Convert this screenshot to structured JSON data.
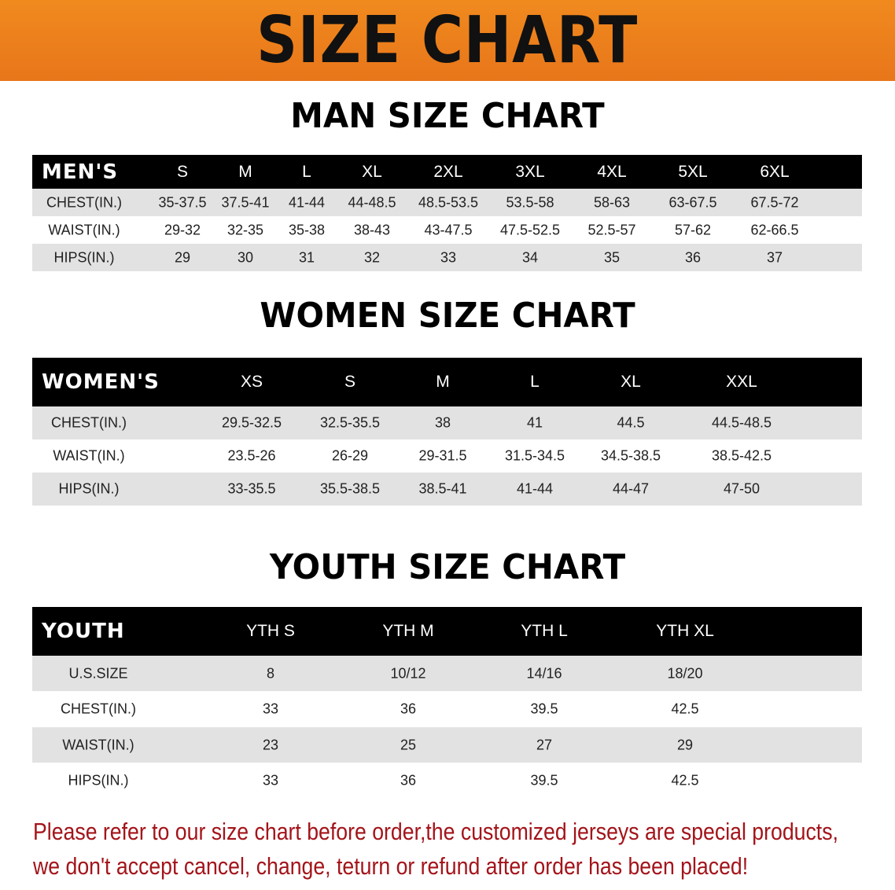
{
  "banner_title": "SIZE CHART",
  "colors": {
    "banner": "#ee801c",
    "header_row": "#000000",
    "stripe": "#e2e2e2",
    "note": "#a3141a"
  },
  "men": {
    "title": "MAN SIZE CHART",
    "header": [
      "MEN'S",
      "S",
      "M",
      "L",
      "XL",
      "2XL",
      "3XL",
      "4XL",
      "5XL",
      "6XL"
    ],
    "rows": [
      [
        "CHEST(IN.)",
        "35-37.5",
        "37.5-41",
        "41-44",
        "44-48.5",
        "48.5-53.5",
        "53.5-58",
        "58-63",
        "63-67.5",
        "67.5-72"
      ],
      [
        "WAIST(IN.)",
        "29-32",
        "32-35",
        "35-38",
        "38-43",
        "43-47.5",
        "47.5-52.5",
        "52.5-57",
        "57-62",
        "62-66.5"
      ],
      [
        "HIPS(IN.)",
        "29",
        "30",
        "31",
        "32",
        "33",
        "34",
        "35",
        "36",
        "37"
      ]
    ]
  },
  "women": {
    "title": "WOMEN SIZE CHART",
    "header": [
      "WOMEN'S",
      "XS",
      "S",
      "M",
      "L",
      "XL",
      "XXL"
    ],
    "rows": [
      [
        "CHEST(IN.)",
        "29.5-32.5",
        "32.5-35.5",
        "38",
        "41",
        "44.5",
        "44.5-48.5"
      ],
      [
        "WAIST(IN.)",
        "23.5-26",
        "26-29",
        "29-31.5",
        "31.5-34.5",
        "34.5-38.5",
        "38.5-42.5"
      ],
      [
        "HIPS(IN.)",
        "33-35.5",
        "35.5-38.5",
        "38.5-41",
        "41-44",
        "44-47",
        "47-50"
      ]
    ]
  },
  "youth": {
    "title": "YOUTH SIZE CHART",
    "header": [
      "YOUTH",
      "YTH S",
      "YTH M",
      "YTH L",
      "YTH XL"
    ],
    "rows": [
      [
        "U.S.SIZE",
        "8",
        "10/12",
        "14/16",
        "18/20"
      ],
      [
        "CHEST(IN.)",
        "33",
        "36",
        "39.5",
        "42.5"
      ],
      [
        "WAIST(IN.)",
        "23",
        "25",
        "27",
        "29"
      ],
      [
        "HIPS(IN.)",
        "33",
        "36",
        "39.5",
        "42.5"
      ]
    ]
  },
  "note": {
    "line1": "Please refer to our size chart before order,the customized jerseys are special products,",
    "line2": "we don't accept cancel, change, teturn or refund after order has been placed!"
  }
}
